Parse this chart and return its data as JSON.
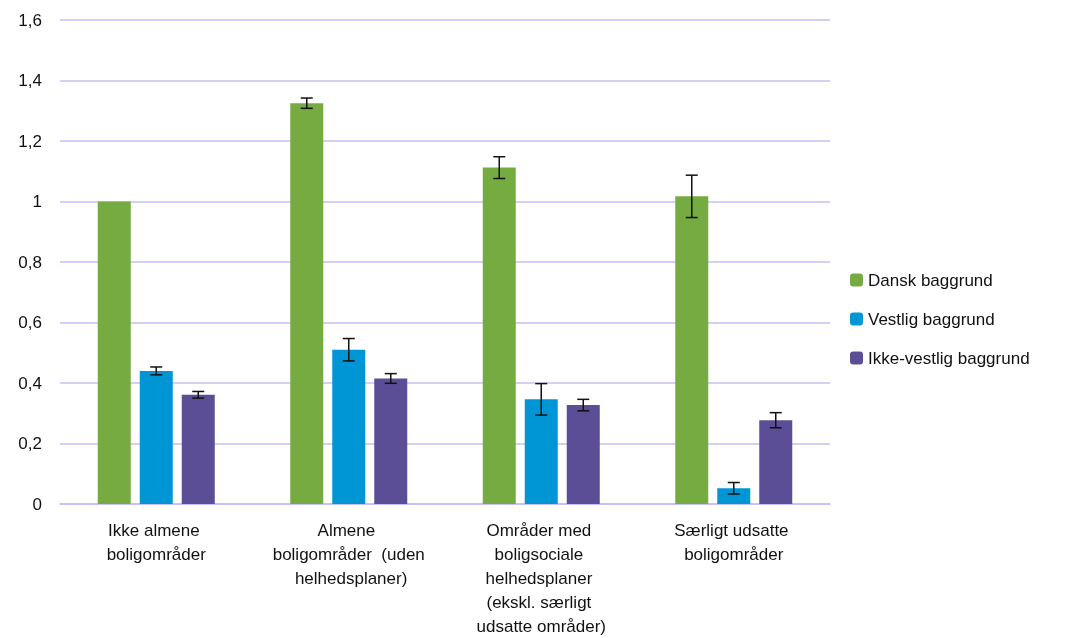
{
  "chart_data": {
    "type": "bar",
    "categories": [
      "Ikke almene boligområder",
      "Almene boligområder  (uden helhedsplaner)",
      "Områder med boligsociale helhedsplaner (ekskl. særligt udsatte områder)",
      "Særligt udsatte boligområder"
    ],
    "series": [
      {
        "name": "Dansk baggrund",
        "color": "#76ab41",
        "values": [
          1.0,
          1.325,
          1.112,
          1.017
        ],
        "errors": [
          null,
          0.017,
          0.036,
          0.07
        ]
      },
      {
        "name": "Vestlig baggrund",
        "color": "#0096d6",
        "values": [
          0.44,
          0.51,
          0.346,
          0.052
        ],
        "errors": [
          0.013,
          0.037,
          0.052,
          0.019
        ]
      },
      {
        "name": "Ikke-vestlig baggrund",
        "color": "#5b4e97",
        "values": [
          0.361,
          0.415,
          0.327,
          0.277
        ],
        "errors": [
          0.011,
          0.016,
          0.019,
          0.025
        ]
      }
    ],
    "ylim": [
      0,
      1.6
    ],
    "yticks": [
      0,
      {
        "value": 0.2,
        "label": "0,2"
      },
      {
        "value": 0.4,
        "label": "0,4"
      },
      {
        "value": 0.6,
        "label": "0,6"
      },
      {
        "value": 0.8,
        "label": "0,8"
      },
      1,
      {
        "value": 1.2,
        "label": "1,2"
      },
      {
        "value": 1.4,
        "label": "1,4"
      },
      {
        "value": 1.6,
        "label": "1,6"
      }
    ],
    "grid": "y",
    "legend": "right"
  }
}
